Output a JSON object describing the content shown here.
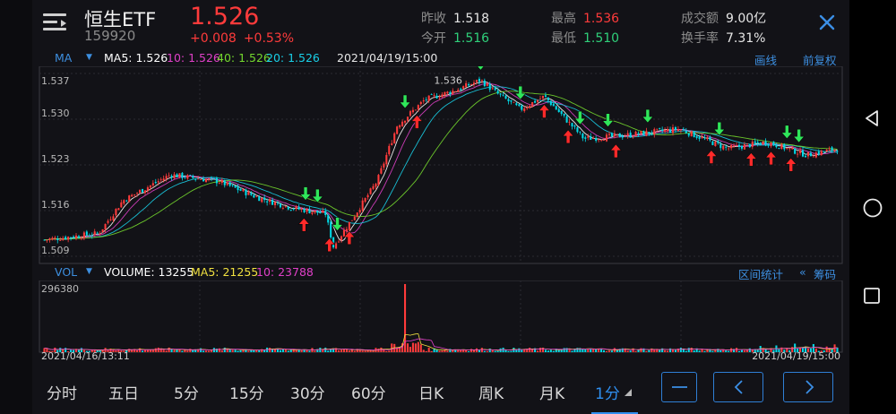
{
  "header": {
    "name": "恒生ETF",
    "code": "159920",
    "price": "1.526",
    "change": "+0.008",
    "change_pct": "+0.53%",
    "quotes": [
      {
        "label": "昨收",
        "value": "1.518",
        "color": "#e6e6e6"
      },
      {
        "label": "今开",
        "value": "1.516",
        "color": "#2fd07a"
      },
      {
        "label": "最高",
        "value": "1.536",
        "color": "#ff3b3b"
      },
      {
        "label": "最低",
        "value": "1.510",
        "color": "#2fd07a"
      },
      {
        "label": "成交额",
        "value": "9.00亿",
        "color": "#e6e6e6"
      },
      {
        "label": "换手率",
        "value": "7.31%",
        "color": "#e6e6e6"
      }
    ]
  },
  "ma_bar": {
    "label": "MA",
    "ma5": "MA5: 1.526",
    "ma10": "10: 1.526",
    "ma40": "40: 1.526",
    "ma20": "20: 1.526",
    "time": "2021/04/19/15:00",
    "draw": "画线",
    "restore": "前复权"
  },
  "vol_bar": {
    "label": "VOL",
    "volume": "VOLUME: 13255",
    "ma5": "MA5: 21255",
    "ma10": "10: 23788",
    "stats": "区间统计",
    "chips": "筹码"
  },
  "tabs": [
    "分时",
    "五日",
    "5分",
    "15分",
    "30分",
    "60分",
    "日K",
    "周K",
    "月K",
    "1分"
  ],
  "active_tab": "1分",
  "colors": {
    "up": "#ff3b3b",
    "down": "#00d9e6",
    "ma5": "#ffffff",
    "ma10": "#e040c8",
    "ma20": "#19d0e8",
    "ma40": "#74d82e",
    "accent": "#2f8ff0"
  },
  "chart_data": [
    {
      "type": "candlestick",
      "title": "",
      "y_axis_ticks": [
        "1.537",
        "1.530",
        "1.523",
        "1.516",
        "1.509"
      ],
      "ylim": [
        1.509,
        1.537
      ],
      "price_annotation": "1.536",
      "x_start": "2021/04/16/13:11",
      "x_end": "2021/04/19/15:00",
      "close_path": [
        [
          0,
          1.5115
        ],
        [
          0.07,
          1.5125
        ],
        [
          0.1,
          1.5175
        ],
        [
          0.16,
          1.5215
        ],
        [
          0.22,
          1.5205
        ],
        [
          0.27,
          1.518
        ],
        [
          0.31,
          1.5165
        ],
        [
          0.355,
          1.5155
        ],
        [
          0.365,
          1.5105
        ],
        [
          0.39,
          1.515
        ],
        [
          0.42,
          1.5205
        ],
        [
          0.445,
          1.529
        ],
        [
          0.48,
          1.533
        ],
        [
          0.52,
          1.5345
        ],
        [
          0.55,
          1.536
        ],
        [
          0.57,
          1.534
        ],
        [
          0.6,
          1.5315
        ],
        [
          0.63,
          1.5335
        ],
        [
          0.68,
          1.527
        ],
        [
          0.73,
          1.5275
        ],
        [
          0.8,
          1.5285
        ],
        [
          0.86,
          1.5255
        ],
        [
          0.91,
          1.5265
        ],
        [
          0.96,
          1.5245
        ],
        [
          1.0,
          1.5255
        ]
      ],
      "ma_series": [
        {
          "name": "MA5",
          "lag": 0.012
        },
        {
          "name": "10",
          "lag": 0.03
        },
        {
          "name": "20",
          "lag": 0.06
        },
        {
          "name": "40",
          "lag": 0.11
        }
      ],
      "signals": [
        {
          "x": 0.328,
          "dir": "sell"
        },
        {
          "x": 0.33,
          "dir": "buy"
        },
        {
          "x": 0.345,
          "dir": "buy"
        },
        {
          "x": 0.36,
          "dir": "sell"
        },
        {
          "x": 0.37,
          "dir": "buy"
        },
        {
          "x": 0.385,
          "dir": "sell"
        },
        {
          "x": 0.455,
          "dir": "buy"
        },
        {
          "x": 0.47,
          "dir": "sell"
        },
        {
          "x": 0.55,
          "dir": "buy"
        },
        {
          "x": 0.6,
          "dir": "buy"
        },
        {
          "x": 0.63,
          "dir": "sell"
        },
        {
          "x": 0.66,
          "dir": "sell"
        },
        {
          "x": 0.675,
          "dir": "buy"
        },
        {
          "x": 0.71,
          "dir": "buy"
        },
        {
          "x": 0.72,
          "dir": "sell"
        },
        {
          "x": 0.76,
          "dir": "buy"
        },
        {
          "x": 0.84,
          "dir": "sell"
        },
        {
          "x": 0.85,
          "dir": "buy"
        },
        {
          "x": 0.89,
          "dir": "sell"
        },
        {
          "x": 0.915,
          "dir": "sell"
        },
        {
          "x": 0.935,
          "dir": "buy"
        },
        {
          "x": 0.94,
          "dir": "sell"
        },
        {
          "x": 0.95,
          "dir": "buy"
        }
      ]
    },
    {
      "type": "bar",
      "title": "",
      "y_axis_ticks": [
        "296380"
      ],
      "ylim": [
        0,
        296380
      ],
      "peak": {
        "x": 0.455,
        "value": 296380
      },
      "x_start": "2021/04/16/13:11",
      "x_end": "2021/04/19/15:00"
    }
  ]
}
